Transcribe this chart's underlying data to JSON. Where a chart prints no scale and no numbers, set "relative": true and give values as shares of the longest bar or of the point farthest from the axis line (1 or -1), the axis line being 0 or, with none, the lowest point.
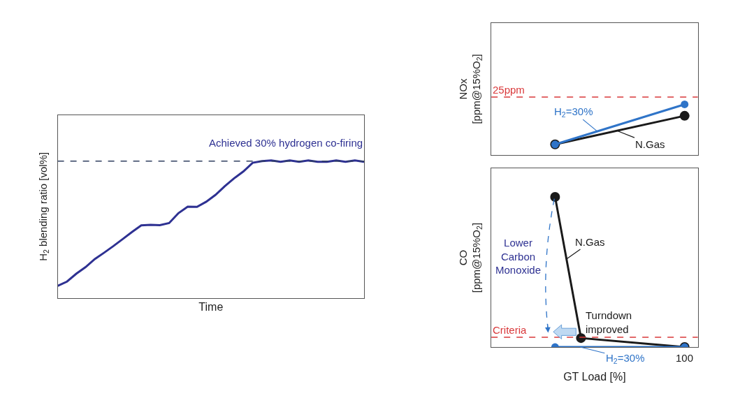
{
  "chart_data": [
    {
      "type": "line",
      "relative": true,
      "tick_labels": false,
      "xlabel": "Time",
      "ylabel": "H$_{2}$ blending ratio [vol%]",
      "categories": [
        null,
        null,
        null,
        null,
        null,
        null,
        null,
        null,
        null,
        null,
        null,
        null,
        null,
        null,
        null,
        null,
        null,
        null,
        null,
        null,
        null,
        null,
        null,
        null,
        null,
        null,
        null,
        null,
        null,
        null,
        null,
        null,
        null,
        null
      ],
      "series": [
        {
          "color": "#2e3192",
          "values": [
            0.089,
            0.12,
            0.177,
            0.225,
            0.284,
            0.33,
            0.378,
            0.429,
            0.48,
            0.528,
            0.532,
            0.53,
            0.545,
            0.617,
            0.664,
            0.663,
            0.7,
            0.75,
            0.813,
            0.87,
            0.92,
            0.983,
            0.995,
            1.0,
            0.99,
            1.0,
            0.99,
            1.0,
            0.99,
            0.99,
            1.0,
            0.99,
            1.0,
            0.99
          ]
        }
      ],
      "marker": "none",
      "line_style": "solid",
      "ref_lines": [
        {
          "axis": "y",
          "value": 0.995,
          "color": "#2f3f5f",
          "line_style": "dashed"
        }
      ],
      "annotations": [
        "Achieved 30% hydrogen co-firing"
      ]
    },
    {
      "type": "line",
      "relative": true,
      "tick_labels": false,
      "ylabel": "NOx\n[ppm@15%O$_{2}$]",
      "categories": [
        null,
        null,
        null,
        null,
        null,
        null
      ],
      "series": [
        {
          "name": "N.Gas",
          "color": "#1a1a1a",
          "values": [
            0.207,
            null,
            null,
            null,
            null,
            0.773
          ]
        },
        {
          "name": "H$_{2}$=30%",
          "color": "#2f74c8",
          "values": [
            0.207,
            null,
            null,
            null,
            null,
            1.0
          ]
        }
      ],
      "marker": "circle",
      "ref_lines": [
        {
          "axis": "y",
          "value": 1.145,
          "label": "25ppm",
          "color": "#d9383a",
          "line_style": "dashed"
        }
      ]
    },
    {
      "type": "line",
      "relative": true,
      "tick_labels": false,
      "xlabel": "GT Load [%]",
      "ylabel": "CO\n[ppm@15%O$_{2}$]",
      "categories": [
        null,
        null,
        null,
        null,
        null,
        null
      ],
      "series": [
        {
          "name": "N.Gas",
          "color": "#1a1a1a",
          "values": [
            1.0,
            0.06,
            null,
            null,
            null,
            0.0
          ]
        },
        {
          "name": "H$_{2}$=30%",
          "color": "#2f74c8",
          "values": [
            0.0,
            null,
            null,
            null,
            null,
            0.0
          ]
        }
      ],
      "marker": "circle",
      "ref_lines": [
        {
          "axis": "y",
          "value": 0.065,
          "label": "Criteria",
          "color": "#d9383a",
          "line_style": "dashed"
        }
      ],
      "annotations": [
        "Lower\nCarbon\nMonoxide",
        "Turndown\nimproved",
        "100"
      ]
    }
  ]
}
